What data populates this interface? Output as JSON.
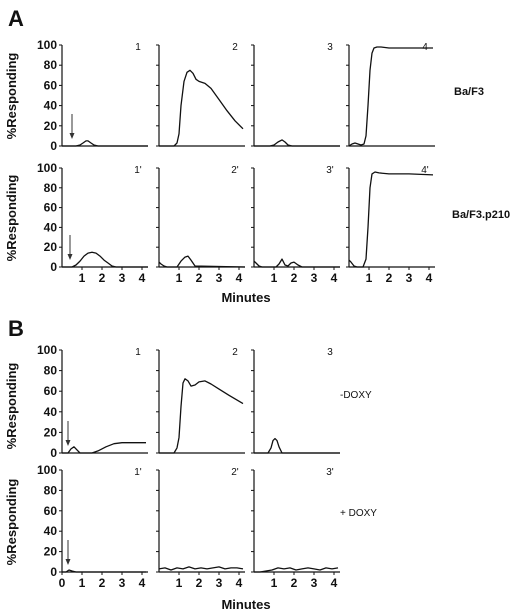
{
  "figure": {
    "section_a_label": "A",
    "section_b_label": "B",
    "ylabel": "%Responding",
    "xlabel": "Minutes",
    "row_labels": {
      "a_top": "Ba/F3",
      "a_bottom": "Ba/F3.p210",
      "b_top": "-DOXY",
      "b_bottom": "+ DOXY"
    }
  },
  "chart_data": [
    {
      "type": "line",
      "panel_label": "1",
      "section": "A",
      "row": 0,
      "col": 0,
      "x_unit": "Minutes",
      "ylabel": "%Responding",
      "ylim": [
        0,
        100
      ],
      "xlim": [
        0,
        4.3
      ],
      "yticks": [
        0,
        20,
        40,
        60,
        80,
        100
      ],
      "xticks": [],
      "arrow_at": 0.5,
      "series": [
        {
          "x": [
            0,
            0.7,
            0.9,
            1.05,
            1.2,
            1.3,
            1.45,
            1.6,
            1.8,
            4.3
          ],
          "y": [
            0,
            0,
            1,
            3,
            5,
            5,
            3,
            1,
            0,
            0
          ]
        }
      ]
    },
    {
      "type": "line",
      "panel_label": "2",
      "section": "A",
      "row": 0,
      "col": 1,
      "x_unit": "Minutes",
      "ylabel": "%Responding",
      "ylim": [
        0,
        100
      ],
      "xlim": [
        0,
        4.3
      ],
      "yticks": [
        0,
        20,
        40,
        60,
        80,
        100
      ],
      "xticks": [],
      "series": [
        {
          "x": [
            0,
            0.75,
            0.9,
            1.0,
            1.1,
            1.25,
            1.4,
            1.55,
            1.7,
            1.85,
            2.0,
            2.3,
            2.6,
            3.0,
            3.4,
            3.8,
            4.2
          ],
          "y": [
            0,
            0,
            3,
            12,
            40,
            64,
            73,
            75,
            72,
            66,
            64,
            62,
            57,
            46,
            35,
            25,
            17
          ]
        }
      ]
    },
    {
      "type": "line",
      "panel_label": "3",
      "section": "A",
      "row": 0,
      "col": 2,
      "x_unit": "Minutes",
      "ylabel": "%Responding",
      "ylim": [
        0,
        100
      ],
      "xlim": [
        0,
        4.3
      ],
      "yticks": [
        0,
        20,
        40,
        60,
        80,
        100
      ],
      "xticks": [],
      "series": [
        {
          "x": [
            0,
            0.8,
            1.0,
            1.2,
            1.4,
            1.55,
            1.7,
            1.9,
            4.3
          ],
          "y": [
            0,
            0,
            1,
            4,
            6,
            4,
            1,
            0,
            0
          ]
        }
      ]
    },
    {
      "type": "line",
      "panel_label": "4",
      "section": "A",
      "row": 0,
      "col": 3,
      "x_unit": "Minutes",
      "ylabel": "%Responding",
      "ylim": [
        0,
        100
      ],
      "xlim": [
        0,
        4.3
      ],
      "yticks": [
        0,
        20,
        40,
        60,
        80,
        100
      ],
      "xticks": [],
      "series": [
        {
          "x": [
            0,
            0.15,
            0.3,
            0.45,
            0.6,
            0.75,
            0.85,
            0.95,
            1.05,
            1.15,
            1.25,
            1.4,
            1.6,
            2.0,
            3.0,
            4.2
          ],
          "y": [
            0,
            2,
            3,
            2,
            1,
            2,
            10,
            40,
            75,
            92,
            97,
            98,
            98,
            97,
            97,
            97
          ]
        }
      ]
    },
    {
      "type": "line",
      "panel_label": "1'",
      "section": "A",
      "row": 1,
      "col": 0,
      "x_unit": "Minutes",
      "ylabel": "%Responding",
      "ylim": [
        0,
        100
      ],
      "xlim": [
        0,
        4.3
      ],
      "yticks": [
        0,
        20,
        40,
        60,
        80,
        100
      ],
      "xticks": [
        1,
        2,
        3,
        4
      ],
      "arrow_at": 0.4,
      "series": [
        {
          "x": [
            0,
            0.5,
            0.7,
            0.9,
            1.1,
            1.3,
            1.5,
            1.7,
            1.9,
            2.1,
            2.3,
            2.5,
            2.7,
            4.3
          ],
          "y": [
            0,
            0,
            2,
            6,
            11,
            14,
            15,
            14,
            11,
            7,
            4,
            1,
            0,
            0
          ]
        }
      ]
    },
    {
      "type": "line",
      "panel_label": "2'",
      "section": "A",
      "row": 1,
      "col": 1,
      "x_unit": "Minutes",
      "ylabel": "%Responding",
      "ylim": [
        0,
        100
      ],
      "xlim": [
        0,
        4.3
      ],
      "yticks": [
        0,
        20,
        40,
        60,
        80,
        100
      ],
      "xticks": [
        1,
        2,
        3,
        4
      ],
      "series": [
        {
          "x": [
            0,
            0.1,
            0.25,
            0.4,
            0.9,
            1.1,
            1.3,
            1.45,
            1.6,
            1.8,
            4.3
          ],
          "y": [
            5,
            3,
            1,
            0,
            0,
            6,
            10,
            11,
            7,
            1,
            0
          ]
        }
      ]
    },
    {
      "type": "line",
      "panel_label": "3'",
      "section": "A",
      "row": 1,
      "col": 2,
      "x_unit": "Minutes",
      "ylabel": "%Responding",
      "ylim": [
        0,
        100
      ],
      "xlim": [
        0,
        4.3
      ],
      "yticks": [
        0,
        20,
        40,
        60,
        80,
        100
      ],
      "xticks": [
        1,
        2,
        3,
        4
      ],
      "series": [
        {
          "x": [
            0,
            0.1,
            0.25,
            0.4,
            1.1,
            1.25,
            1.4,
            1.55,
            1.7,
            1.85,
            2.0,
            2.2,
            2.4,
            4.3
          ],
          "y": [
            6,
            4,
            1,
            0,
            0,
            3,
            8,
            2,
            1,
            4,
            5,
            2,
            0,
            0
          ]
        }
      ]
    },
    {
      "type": "line",
      "panel_label": "4'",
      "section": "A",
      "row": 1,
      "col": 3,
      "x_unit": "Minutes",
      "ylabel": "%Responding",
      "ylim": [
        0,
        100
      ],
      "xlim": [
        0,
        4.3
      ],
      "yticks": [
        0,
        20,
        40,
        60,
        80,
        100
      ],
      "xticks": [
        1,
        2,
        3,
        4
      ],
      "series": [
        {
          "x": [
            0,
            0.1,
            0.25,
            0.4,
            0.7,
            0.85,
            0.95,
            1.05,
            1.15,
            1.3,
            1.5,
            2.0,
            3.0,
            4.2
          ],
          "y": [
            7,
            5,
            1,
            0,
            0,
            8,
            40,
            80,
            94,
            96,
            95,
            94,
            94,
            93
          ]
        }
      ]
    },
    {
      "type": "line",
      "panel_label": "1",
      "section": "B",
      "row": 0,
      "col": 0,
      "x_unit": "Minutes",
      "ylabel": "%Responding",
      "ylim": [
        0,
        100
      ],
      "xlim": [
        0,
        4.3
      ],
      "yticks": [
        0,
        20,
        40,
        60,
        80,
        100
      ],
      "xticks": [],
      "arrow_at": 0.3,
      "series": [
        {
          "x": [
            0,
            0.3,
            0.45,
            0.6,
            0.75,
            0.9,
            1.1,
            1.5,
            1.8,
            2.2,
            2.6,
            3.0,
            3.5,
            4.2
          ],
          "y": [
            0,
            0,
            4,
            6,
            3,
            0,
            0,
            0,
            2,
            6,
            9,
            10,
            10,
            10
          ]
        }
      ]
    },
    {
      "type": "line",
      "panel_label": "2",
      "section": "B",
      "row": 0,
      "col": 1,
      "x_unit": "Minutes",
      "ylabel": "%Responding",
      "ylim": [
        0,
        100
      ],
      "xlim": [
        0,
        4.3
      ],
      "yticks": [
        0,
        20,
        40,
        60,
        80,
        100
      ],
      "xticks": [],
      "series": [
        {
          "x": [
            0,
            0.75,
            0.9,
            1.0,
            1.1,
            1.2,
            1.3,
            1.45,
            1.6,
            1.8,
            2.0,
            2.3,
            2.6,
            3.0,
            3.5,
            4.2
          ],
          "y": [
            0,
            0,
            5,
            15,
            45,
            68,
            72,
            70,
            65,
            66,
            69,
            70,
            67,
            62,
            56,
            48
          ]
        }
      ]
    },
    {
      "type": "line",
      "panel_label": "3",
      "section": "B",
      "row": 0,
      "col": 2,
      "x_unit": "Minutes",
      "ylabel": "%Responding",
      "ylim": [
        0,
        100
      ],
      "xlim": [
        0,
        4.3
      ],
      "yticks": [
        0,
        20,
        40,
        60,
        80,
        100
      ],
      "xticks": [],
      "series": [
        {
          "x": [
            0,
            0.7,
            0.85,
            0.95,
            1.05,
            1.15,
            1.25,
            1.4,
            1.6,
            4.3
          ],
          "y": [
            0,
            0,
            5,
            12,
            14,
            12,
            6,
            0,
            0,
            0
          ]
        }
      ]
    },
    {
      "type": "line",
      "panel_label": "1'",
      "section": "B",
      "row": 1,
      "col": 0,
      "x_unit": "Minutes",
      "ylabel": "%Responding",
      "ylim": [
        0,
        100
      ],
      "xlim": [
        0,
        4.3
      ],
      "yticks": [
        0,
        20,
        40,
        60,
        80,
        100
      ],
      "xticks": [
        0,
        1,
        2,
        3,
        4
      ],
      "arrow_at": 0.3,
      "series": [
        {
          "x": [
            0,
            0.2,
            0.35,
            0.5,
            0.7,
            1.0,
            1.5,
            2.0,
            3.0,
            4.0,
            4.2
          ],
          "y": [
            0,
            0,
            2,
            1,
            0,
            0,
            0,
            0,
            0,
            0,
            0
          ]
        }
      ]
    },
    {
      "type": "line",
      "panel_label": "2'",
      "section": "B",
      "row": 1,
      "col": 1,
      "x_unit": "Minutes",
      "ylabel": "%Responding",
      "ylim": [
        0,
        100
      ],
      "xlim": [
        0,
        4.3
      ],
      "yticks": [
        0,
        20,
        40,
        60,
        80,
        100
      ],
      "xticks": [
        1,
        2,
        3,
        4
      ],
      "series": [
        {
          "x": [
            0,
            0.3,
            0.6,
            0.9,
            1.2,
            1.5,
            1.8,
            2.1,
            2.4,
            2.7,
            3.0,
            3.3,
            3.6,
            3.9,
            4.2
          ],
          "y": [
            3,
            4,
            2,
            4,
            3,
            5,
            3,
            4,
            3,
            4,
            5,
            3,
            4,
            4,
            3
          ]
        }
      ]
    },
    {
      "type": "line",
      "panel_label": "3'",
      "section": "B",
      "row": 1,
      "col": 2,
      "x_unit": "Minutes",
      "ylabel": "%Responding",
      "ylim": [
        0,
        100
      ],
      "xlim": [
        0,
        4.3
      ],
      "yticks": [
        0,
        20,
        40,
        60,
        80,
        100
      ],
      "xticks": [
        1,
        2,
        3,
        4
      ],
      "series": [
        {
          "x": [
            0,
            0.3,
            0.6,
            0.9,
            1.2,
            1.5,
            1.8,
            2.1,
            2.4,
            2.7,
            3.0,
            3.3,
            3.6,
            3.9,
            4.2
          ],
          "y": [
            0,
            0,
            1,
            2,
            4,
            3,
            4,
            2,
            3,
            4,
            3,
            2,
            4,
            3,
            4
          ]
        }
      ]
    }
  ]
}
